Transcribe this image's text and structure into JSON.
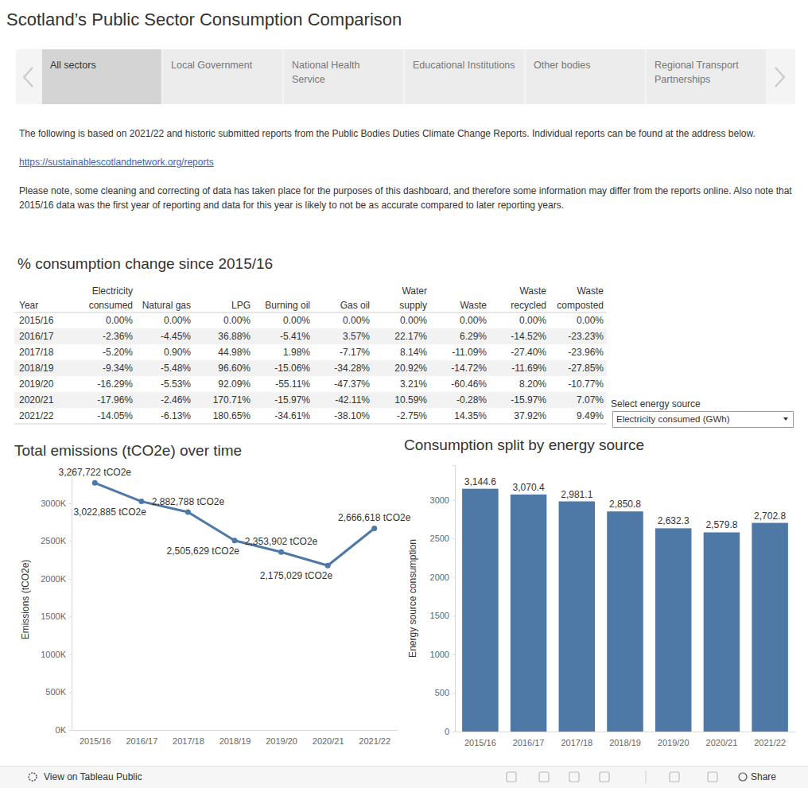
{
  "header": {
    "title": "Scotland’s Public Sector Consumption Comparison"
  },
  "tabs": [
    "All sectors",
    "Local Government",
    "National Health Service",
    "Educational Institutions",
    "Other bodies",
    "Regional Transport Partnerships"
  ],
  "intro": {
    "text1": "The following is based on 2021/22 and historic submitted reports from the Public Bodies Duties Climate Change Reports. Individual reports can be found at the address below.",
    "link": "https://sustainablescotlandnetwork.org/reports",
    "text2": "Please note, some cleaning and correcting of data has taken place for the purposes of this dashboard, and therefore some information may differ from the reports online. Also note that 2015/16 data was the first year of reporting and data for this year is likely to not be as accurate compared to later reporting years."
  },
  "table": {
    "title": "% consumption change since 2015/16",
    "columns": [
      [
        "Year"
      ],
      [
        "Electricity",
        "consumed"
      ],
      [
        "Natural gas"
      ],
      [
        "LPG"
      ],
      [
        "Burning oil"
      ],
      [
        "Gas oil"
      ],
      [
        "Water",
        "supply"
      ],
      [
        "Waste"
      ],
      [
        "Waste",
        "recycled"
      ],
      [
        "Waste",
        "composted"
      ]
    ],
    "rows": [
      [
        "2015/16",
        "0.00%",
        "0.00%",
        "0.00%",
        "0.00%",
        "0.00%",
        "0.00%",
        "0.00%",
        "0.00%",
        "0.00%"
      ],
      [
        "2016/17",
        "-2.36%",
        "-4.45%",
        "36.88%",
        "-5.41%",
        "3.57%",
        "22.17%",
        "6.29%",
        "-14.52%",
        "-23.23%"
      ],
      [
        "2017/18",
        "-5.20%",
        "0.90%",
        "44.98%",
        "1.98%",
        "-7.17%",
        "8.14%",
        "-11.09%",
        "-27.40%",
        "-23.96%"
      ],
      [
        "2018/19",
        "-9.34%",
        "-5.48%",
        "96.60%",
        "-15.06%",
        "-34.28%",
        "20.92%",
        "-14.72%",
        "-11.69%",
        "-27.85%"
      ],
      [
        "2019/20",
        "-16.29%",
        "-5.53%",
        "92.09%",
        "-55.11%",
        "-47.37%",
        "3.21%",
        "-60.46%",
        "8.20%",
        "-10.77%"
      ],
      [
        "2020/21",
        "-17.96%",
        "-2.46%",
        "170.71%",
        "-15.97%",
        "-42.11%",
        "10.59%",
        "-0.28%",
        "-15.97%",
        "7.07%"
      ],
      [
        "2021/22",
        "-14.05%",
        "-6.13%",
        "180.65%",
        "-34.61%",
        "-38.10%",
        "-2.75%",
        "14.35%",
        "37.92%",
        "9.49%"
      ]
    ]
  },
  "controls": {
    "label": "Select energy source",
    "selected": "Electricity consumed (GWh)"
  },
  "chart_data": [
    {
      "type": "line",
      "title": "Total emissions (tCO2e) over time",
      "y_label": "Emissions (tCO2e)",
      "categories": [
        "2015/16",
        "2016/17",
        "2017/18",
        "2018/19",
        "2019/20",
        "2020/21",
        "2021/22"
      ],
      "values": [
        3267722,
        3022885,
        2882788,
        2505629,
        2353902,
        2175029,
        2666618
      ],
      "value_labels": [
        "3,267,722 tCO2e",
        "3,022,885 tCO2e",
        "2,882,788 tCO2e",
        "2,505,629 tCO2e",
        "2,353,902 tCO2e",
        "2,175,029 tCO2e",
        "2,666,618 tCO2e"
      ],
      "color": "#4e79a7",
      "marker": "circle",
      "ylim": [
        0,
        3450000
      ],
      "yticks": [
        {
          "value": 0,
          "label": "0K"
        },
        {
          "value": 500000,
          "label": "500K"
        },
        {
          "value": 1000000,
          "label": "1000K"
        },
        {
          "value": 1500000,
          "label": "1500K"
        },
        {
          "value": 2000000,
          "label": "2000K"
        },
        {
          "value": 2500000,
          "label": "2500K"
        },
        {
          "value": 3000000,
          "label": "3000K"
        }
      ],
      "grid": false,
      "data_labels": true
    },
    {
      "type": "bar",
      "title": "Consumption split by energy source",
      "y_label": "Energy source consumption",
      "categories": [
        "2015/16",
        "2016/17",
        "2017/18",
        "2018/19",
        "2019/20",
        "2020/21",
        "2021/22"
      ],
      "values": [
        3144.6,
        3070.4,
        2981.1,
        2850.8,
        2632.3,
        2579.8,
        2702.8
      ],
      "value_labels": [
        "3,144.6",
        "3,070.4",
        "2,981.1",
        "2,850.8",
        "2,632.3",
        "2,579.8",
        "2,702.8"
      ],
      "color": "#4e79a7",
      "ylim": [
        0,
        3450
      ],
      "yticks": [
        0,
        500,
        1000,
        1500,
        2000,
        2500,
        3000
      ],
      "grid": false,
      "data_labels": true
    }
  ],
  "footer": {
    "link": "View on Tableau Public",
    "share": "Share"
  }
}
